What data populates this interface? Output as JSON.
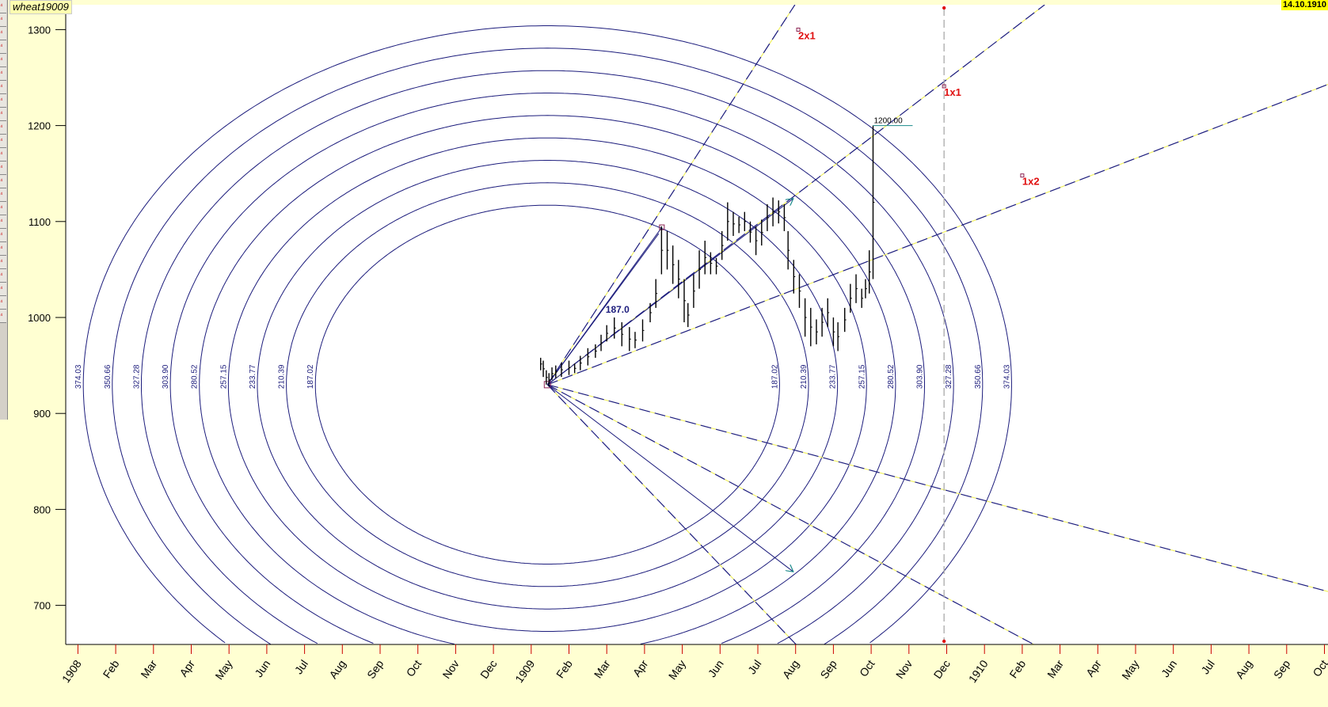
{
  "header": {
    "symbol": "wheat19009",
    "date": "14.10.1910"
  },
  "toolbar": {
    "buttons": 24
  },
  "colors": {
    "ellipse": "#1c1c7c",
    "fan": "#1c1c7c",
    "fan_dash": "#f0f060",
    "ratio_label": "#e01010",
    "background": "#FFFFD2",
    "plot": "#ffffff"
  },
  "chart_data": {
    "type": "bar",
    "title": "wheat19009",
    "ylim": [
      660,
      1330
    ],
    "yticks": [
      700,
      800,
      900,
      1000,
      1100,
      1200,
      1300
    ],
    "x_months_start": "Jan 1908",
    "xticks": [
      "1908",
      "Feb",
      "Mar",
      "Apr",
      "May",
      "Jun",
      "Jul",
      "Aug",
      "Sep",
      "Oct",
      "Nov",
      "Dec",
      "1909",
      "Feb",
      "Mar",
      "Apr",
      "May",
      "Jun",
      "Jul",
      "Aug",
      "Sep",
      "Oct",
      "Nov",
      "Dec",
      "1910",
      "Feb",
      "Mar",
      "Apr",
      "May",
      "Jun",
      "Jul",
      "Aug",
      "Sep",
      "Oct"
    ],
    "center": {
      "month": 12.43,
      "price": 930
    },
    "ellipse_radii": [
      "187.02",
      "210.39",
      "233.77",
      "257.15",
      "280.52",
      "303.90",
      "327.28",
      "350.66",
      "374.03"
    ],
    "fan_lines": [
      {
        "name": "2x1",
        "to": [
          19.0,
          1327
        ]
      },
      {
        "name": "1x1",
        "to": [
          25.63,
          1327
        ]
      },
      {
        "name": "1x2",
        "to": [
          33.1,
          1243
        ]
      },
      {
        "name": "2x1-down",
        "to": [
          17.0,
          742
        ]
      },
      {
        "name": "1x1-down",
        "to": [
          21.37,
          742
        ]
      },
      {
        "name": "1x2-down",
        "to": [
          30.45,
          742
        ]
      }
    ],
    "ratio_labels": [
      {
        "text": "2x1",
        "month": 19.07,
        "price": 1295
      },
      {
        "text": "1x1",
        "month": 22.93,
        "price": 1236
      },
      {
        "text": "1x2",
        "month": 25.0,
        "price": 1143
      }
    ],
    "arrows": [
      {
        "to": [
          18.94,
          1124
        ]
      },
      {
        "to": [
          18.94,
          735
        ]
      }
    ],
    "pivot_box": {
      "month": 15.46,
      "price": 1094
    },
    "radius_label": {
      "text": "187.0",
      "month": 13.97,
      "price": 1005
    },
    "price_marker": {
      "text": "1200.00",
      "month": 21.05,
      "price": 1200
    },
    "vertical_line_month": 22.93,
    "bars": [
      [
        12.25,
        958,
        945
      ],
      [
        12.32,
        955,
        938
      ],
      [
        12.4,
        945,
        930
      ],
      [
        12.47,
        942,
        928
      ],
      [
        12.55,
        948,
        935
      ],
      [
        12.65,
        950,
        937
      ],
      [
        12.8,
        953,
        938
      ],
      [
        13.0,
        955,
        940
      ],
      [
        13.15,
        952,
        942
      ],
      [
        13.3,
        960,
        945
      ],
      [
        13.5,
        968,
        950
      ],
      [
        13.7,
        972,
        958
      ],
      [
        13.85,
        982,
        965
      ],
      [
        14.0,
        992,
        975
      ],
      [
        14.2,
        1000,
        978
      ],
      [
        14.4,
        995,
        970
      ],
      [
        14.6,
        990,
        965
      ],
      [
        14.75,
        985,
        968
      ],
      [
        14.95,
        998,
        975
      ],
      [
        15.15,
        1015,
        995
      ],
      [
        15.3,
        1040,
        1010
      ],
      [
        15.45,
        1095,
        1045
      ],
      [
        15.6,
        1090,
        1050
      ],
      [
        15.75,
        1075,
        1035
      ],
      [
        15.9,
        1060,
        1020
      ],
      [
        16.05,
        1040,
        995
      ],
      [
        16.15,
        1015,
        990
      ],
      [
        16.3,
        1045,
        1010
      ],
      [
        16.45,
        1070,
        1030
      ],
      [
        16.6,
        1080,
        1045
      ],
      [
        16.75,
        1068,
        1045
      ],
      [
        16.9,
        1062,
        1045
      ],
      [
        17.05,
        1090,
        1060
      ],
      [
        17.2,
        1120,
        1080
      ],
      [
        17.35,
        1110,
        1085
      ],
      [
        17.5,
        1105,
        1088
      ],
      [
        17.65,
        1110,
        1090
      ],
      [
        17.8,
        1100,
        1078
      ],
      [
        17.95,
        1095,
        1065
      ],
      [
        18.1,
        1102,
        1075
      ],
      [
        18.25,
        1118,
        1090
      ],
      [
        18.4,
        1125,
        1095
      ],
      [
        18.55,
        1122,
        1098
      ],
      [
        18.7,
        1118,
        1090
      ],
      [
        18.8,
        1090,
        1050
      ],
      [
        18.95,
        1060,
        1025
      ],
      [
        19.1,
        1045,
        1010
      ],
      [
        19.25,
        1020,
        980
      ],
      [
        19.4,
        1010,
        970
      ],
      [
        19.55,
        998,
        972
      ],
      [
        19.7,
        1010,
        980
      ],
      [
        19.85,
        1020,
        990
      ],
      [
        20.0,
        1000,
        970
      ],
      [
        20.12,
        995,
        965
      ],
      [
        20.3,
        1010,
        985
      ],
      [
        20.45,
        1035,
        1005
      ],
      [
        20.6,
        1045,
        1015
      ],
      [
        20.75,
        1030,
        1010
      ],
      [
        20.85,
        1040,
        1020
      ],
      [
        20.95,
        1070,
        1025
      ],
      [
        21.05,
        1200,
        1040
      ]
    ]
  }
}
